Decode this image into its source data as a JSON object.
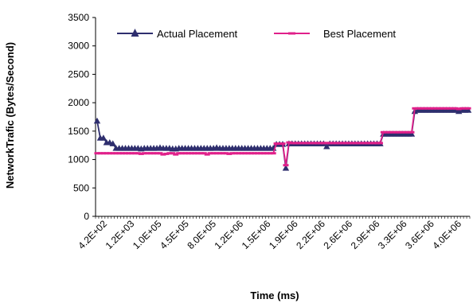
{
  "chart_data": {
    "type": "line",
    "title": "",
    "xlabel": "Time (ms)",
    "ylabel": "NetworkTrafic (Bytes/Second)",
    "ylim": [
      0,
      3500
    ],
    "yticks": [
      0,
      500,
      1000,
      1500,
      2000,
      2500,
      3000,
      3500
    ],
    "x_tick_labels": [
      "4.2E+02",
      "1.2E+03",
      "1.0E+05",
      "4.5E+05",
      "8.0E+05",
      "1.2E+06",
      "1.5E+06",
      "1.9E+06",
      "2.2E+06",
      "2.6E+06",
      "2.9E+06",
      "3.3E+06",
      "3.6E+06",
      "4.0E+06"
    ],
    "grid": false,
    "legend_position": "top",
    "series": [
      {
        "name": "Actual Placement",
        "color": "#2e2e6e",
        "marker": "triangle",
        "values": [
          1680,
          1380,
          1380,
          1300,
          1300,
          1280,
          1200,
          1200,
          1200,
          1200,
          1200,
          1200,
          1200,
          1200,
          1190,
          1200,
          1200,
          1200,
          1200,
          1200,
          1210,
          1200,
          1200,
          1200,
          1190,
          1190,
          1200,
          1200,
          1200,
          1200,
          1200,
          1200,
          1200,
          1200,
          1200,
          1200,
          1200,
          1200,
          1210,
          1200,
          1200,
          1200,
          1200,
          1200,
          1200,
          1200,
          1200,
          1200,
          1200,
          1200,
          1200,
          1200,
          1200,
          1200,
          1200,
          1200,
          1200,
          1270,
          1270,
          1270,
          850,
          1280,
          1280,
          1280,
          1280,
          1280,
          1280,
          1280,
          1280,
          1280,
          1280,
          1280,
          1280,
          1230,
          1280,
          1280,
          1280,
          1280,
          1280,
          1280,
          1280,
          1280,
          1280,
          1280,
          1280,
          1280,
          1280,
          1280,
          1280,
          1280,
          1280,
          1450,
          1450,
          1450,
          1450,
          1450,
          1450,
          1450,
          1450,
          1450,
          1450,
          1850,
          1870,
          1870,
          1870,
          1870,
          1870,
          1870,
          1870,
          1870,
          1870,
          1870,
          1870,
          1870,
          1870,
          1850,
          1870,
          1870,
          1870
        ]
      },
      {
        "name": "Best Placement",
        "color": "#e0208a",
        "marker": "dash",
        "values": [
          1110,
          1110,
          1110,
          1110,
          1110,
          1110,
          1110,
          1110,
          1110,
          1110,
          1110,
          1110,
          1110,
          1110,
          1100,
          1110,
          1110,
          1110,
          1110,
          1110,
          1110,
          1090,
          1100,
          1110,
          1110,
          1090,
          1110,
          1110,
          1110,
          1110,
          1110,
          1110,
          1110,
          1110,
          1110,
          1090,
          1110,
          1110,
          1110,
          1110,
          1110,
          1110,
          1100,
          1110,
          1110,
          1110,
          1110,
          1110,
          1110,
          1110,
          1110,
          1110,
          1110,
          1110,
          1110,
          1110,
          1110,
          1280,
          1280,
          1280,
          900,
          1300,
          1290,
          1290,
          1290,
          1290,
          1290,
          1290,
          1290,
          1290,
          1290,
          1290,
          1290,
          1290,
          1290,
          1290,
          1290,
          1290,
          1290,
          1290,
          1290,
          1290,
          1290,
          1290,
          1290,
          1290,
          1290,
          1290,
          1290,
          1290,
          1290,
          1480,
          1480,
          1480,
          1480,
          1480,
          1480,
          1480,
          1480,
          1480,
          1480,
          1900,
          1900,
          1900,
          1900,
          1900,
          1900,
          1900,
          1900,
          1900,
          1900,
          1900,
          1900,
          1900,
          1900,
          1890,
          1900,
          1900,
          1900
        ]
      }
    ]
  }
}
